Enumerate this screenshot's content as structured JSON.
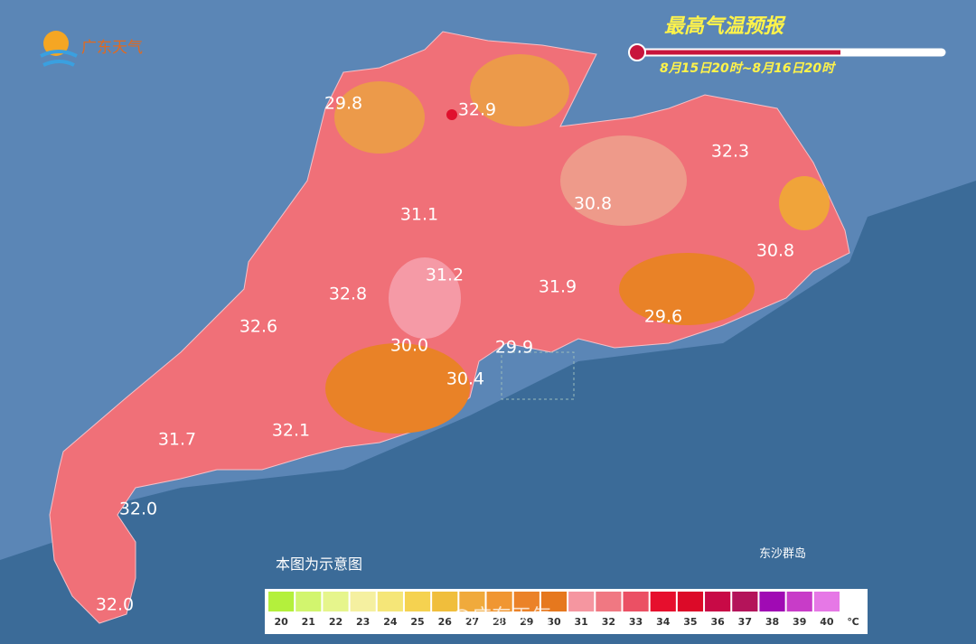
{
  "logo": "广东天气",
  "title": "最高气温预报",
  "subtitle": "8月15日20时~8月16日20时",
  "temperatures": [
    "29.8",
    "32.9",
    "32.3",
    "31.1",
    "30.8",
    "30.8",
    "31.2",
    "32.8",
    "31.9",
    "32.6",
    "29.6",
    "30.0",
    "29.9",
    "30.4",
    "31.7",
    "32.1",
    "32.0",
    "32.0"
  ],
  "note": "本图为示意图",
  "island_label": "东沙群岛",
  "watermark": "@广东天气",
  "legend": {
    "items": [
      {
        "label": 20,
        "color": "#b4f03c"
      },
      {
        "label": 21,
        "color": "#d2f56e"
      },
      {
        "label": 22,
        "color": "#e6f58c"
      },
      {
        "label": 23,
        "color": "#f5f0a0"
      },
      {
        "label": 24,
        "color": "#f5e678"
      },
      {
        "label": 25,
        "color": "#f5d250"
      },
      {
        "label": 26,
        "color": "#f0be3c"
      },
      {
        "label": 27,
        "color": "#f0aa3c"
      },
      {
        "label": 28,
        "color": "#f09632"
      },
      {
        "label": 29,
        "color": "#eb8228"
      },
      {
        "label": 30,
        "color": "#e6781e"
      },
      {
        "label": 31,
        "color": "#f596a0"
      },
      {
        "label": 32,
        "color": "#f07882"
      },
      {
        "label": 33,
        "color": "#eb5064"
      },
      {
        "label": 34,
        "color": "#e60f2d"
      },
      {
        "label": 35,
        "color": "#dc0a28"
      },
      {
        "label": 36,
        "color": "#c80a46"
      },
      {
        "label": 37,
        "color": "#b4145a"
      },
      {
        "label": 38,
        "color": "#a00ab4"
      },
      {
        "label": 39,
        "color": "#c83cc8"
      },
      {
        "label": 40,
        "color": "#e678e6"
      }
    ],
    "unit": "℃"
  }
}
